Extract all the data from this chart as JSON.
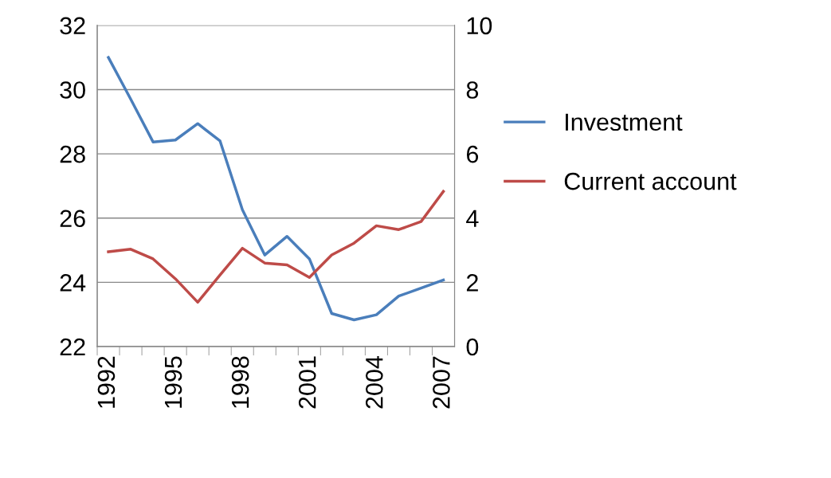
{
  "chart_data": {
    "type": "line",
    "categories": [
      "1992",
      null,
      null,
      "1995",
      null,
      null,
      "1998",
      null,
      null,
      "2001",
      null,
      null,
      "2004",
      null,
      null,
      "2007"
    ],
    "series": [
      {
        "name": "Investment",
        "color": "#4a7ebb",
        "values": [
          31.0,
          29.7,
          28.37,
          28.43,
          28.94,
          28.4,
          26.26,
          24.85,
          25.43,
          24.73,
          23.03,
          22.83,
          22.99,
          23.57,
          23.82,
          24.07
        ]
      },
      {
        "name": "Current account",
        "color": "#be4b48",
        "axis": "y2",
        "values": [
          2.95,
          3.03,
          2.73,
          2.11,
          1.38,
          2.23,
          3.06,
          2.6,
          2.54,
          2.15,
          2.85,
          3.22,
          3.76,
          3.64,
          3.89,
          4.83
        ]
      }
    ],
    "ylim": [
      22,
      32
    ],
    "yticks": [
      22,
      24,
      26,
      28,
      30,
      32
    ],
    "y2lim": [
      0,
      10
    ],
    "y2ticks": [
      0,
      2,
      4,
      6,
      8,
      10
    ],
    "grid": "y",
    "legend": "right",
    "marker": "none",
    "line_style": "solid"
  }
}
